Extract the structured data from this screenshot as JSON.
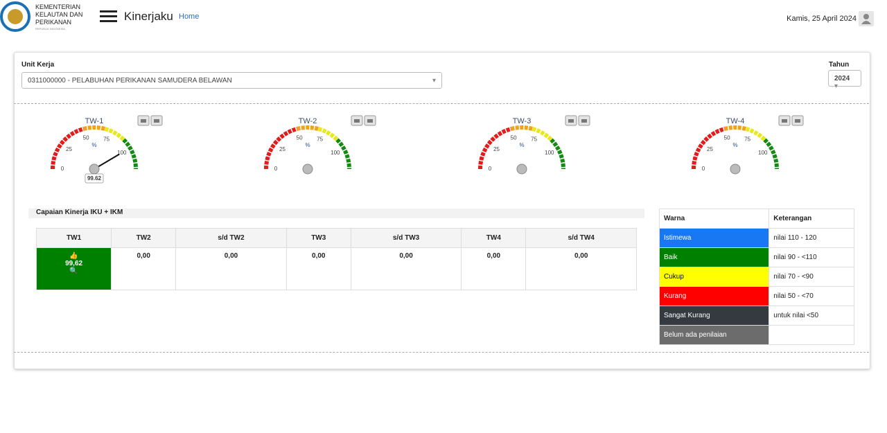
{
  "header": {
    "brand": [
      "KEMENTERIAN",
      "KELAUTAN DAN",
      "PERIKANAN"
    ],
    "brand_sub": "REPUBLIK INDONESIA",
    "app": "Kinerjaku",
    "nav": "Home",
    "date": "Kamis, 25 April 2024"
  },
  "filters": {
    "unit_label": "Unit Kerja",
    "unit_value": "0311000000 - PELABUHAN PERIKANAN SAMUDERA BELAWAN",
    "year_label": "Tahun",
    "year_value": "2024"
  },
  "gauges": {
    "min": 0,
    "max": 120,
    "ticks": [
      0,
      25,
      50,
      75,
      100
    ],
    "unit": "%",
    "bands": [
      {
        "from": 0,
        "to": 50,
        "color": "#e41b1b"
      },
      {
        "from": 50,
        "to": 70,
        "color": "#f0a21a"
      },
      {
        "from": 70,
        "to": 90,
        "color": "#e8e81a"
      },
      {
        "from": 90,
        "to": 120,
        "color": "#148a14"
      }
    ],
    "items": [
      {
        "title": "TW-1",
        "value": 99.62
      },
      {
        "title": "TW-2"
      },
      {
        "title": "TW-3"
      },
      {
        "title": "TW-4"
      }
    ]
  },
  "performance": {
    "title": "Capaian Kinerja IKU + IKM",
    "columns": [
      "TW1",
      "TW2",
      "s/d TW2",
      "TW3",
      "s/d TW3",
      "TW4",
      "s/d TW4"
    ],
    "values": [
      "99,62",
      "0,00",
      "0,00",
      "0,00",
      "0,00",
      "0,00",
      "0,00"
    ]
  },
  "legend": {
    "columns": [
      "Warna",
      "Keterangan"
    ],
    "rows": [
      {
        "name": "Istimewa",
        "note": "nilai 110 - 120",
        "color": "#1877f2"
      },
      {
        "name": "Baik",
        "note": "nilai 90 - <110",
        "color": "#008000"
      },
      {
        "name": "Cukup",
        "note": "nilai 70 - <90",
        "color": "#ffff00"
      },
      {
        "name": "Kurang",
        "note": "nilai 50 - <70",
        "color": "#ff0000"
      },
      {
        "name": "Sangat Kurang",
        "note": "untuk nilai <50",
        "color": "#343a40"
      },
      {
        "name": "Belum ada penilaian",
        "color": "#6c6c6c"
      }
    ]
  }
}
